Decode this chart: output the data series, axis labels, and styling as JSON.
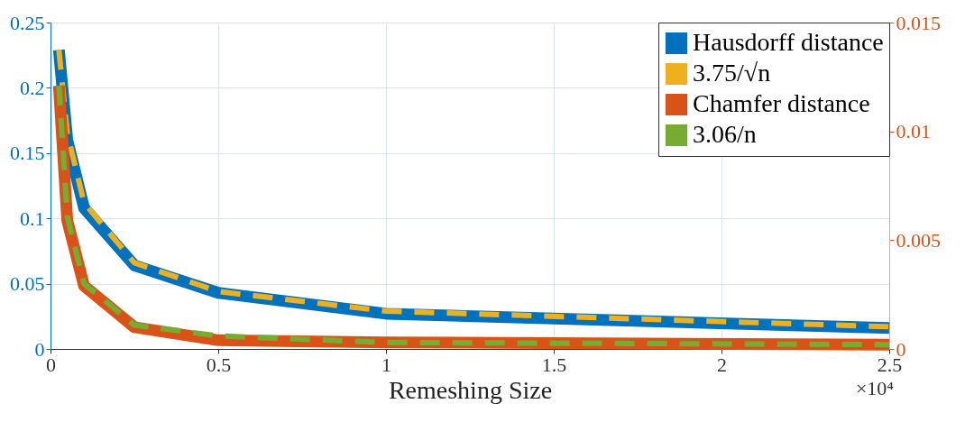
{
  "chart_data": {
    "type": "line",
    "xlabel": "Remeshing Size",
    "x": [
      0.025,
      0.05,
      0.1,
      0.25,
      0.5,
      1,
      2.5
    ],
    "xlim": [
      0,
      2.5
    ],
    "xticks": [
      0,
      0.5,
      1,
      1.5,
      2,
      2.5
    ],
    "ylim": [
      0,
      0.25
    ],
    "yticks": [
      0,
      0.05,
      0.1,
      0.15,
      0.2,
      0.25
    ],
    "y2lim": [
      0,
      0.015
    ],
    "y2ticks": [
      0,
      0.005,
      0.01,
      0.015
    ],
    "series": [
      {
        "name": "Hausdorff distance",
        "color": "#0072bd",
        "line_style": "solid",
        "values": [
          0.229,
          0.16,
          0.108,
          0.064,
          0.043,
          0.027,
          0.016
        ]
      },
      {
        "name": "3.75/√n",
        "color": "#edb120",
        "line_style": "dashed",
        "values": [
          0.229,
          0.165,
          0.112,
          0.066,
          0.044,
          0.029,
          0.017
        ]
      },
      {
        "name": "Chamfer distance",
        "color": "#d95319",
        "line_style": "solid",
        "axis": "y2",
        "values": [
          0.0121,
          0.0059,
          0.0029,
          0.001,
          0.0004,
          0.0003,
          0.0002
        ]
      },
      {
        "name": "3.06/n",
        "color": "#77ac30",
        "line_style": "dashed",
        "axis": "y2",
        "values": [
          0.0121,
          0.0061,
          0.003,
          0.0011,
          0.0006,
          0.0003,
          0.0002
        ]
      }
    ],
    "annotations": [
      "×10⁴"
    ],
    "grid": true,
    "legend": "top right",
    "marker": "none"
  }
}
